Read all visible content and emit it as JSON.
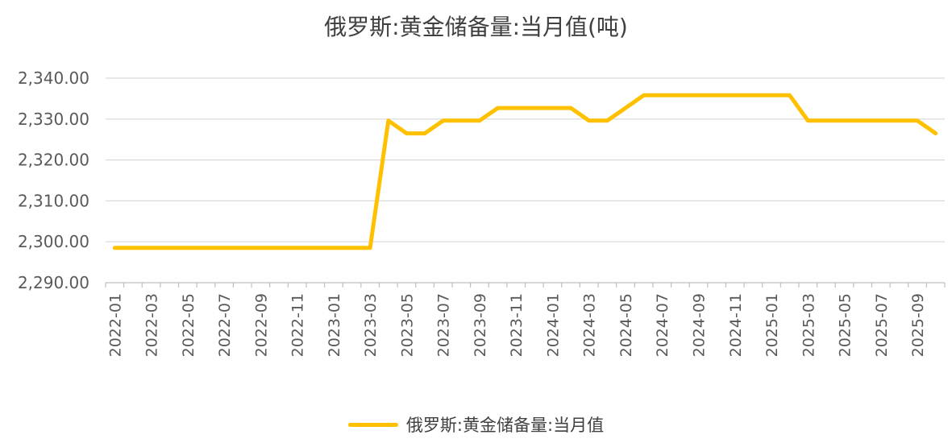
{
  "chart_data": {
    "type": "line",
    "title": "俄罗斯:黄金储备量:当月值(吨)",
    "xlabel": "",
    "ylabel": "",
    "ylim": [
      2290,
      2340
    ],
    "yticks": [
      "2,290.00",
      "2,300.00",
      "2,310.00",
      "2,320.00",
      "2,330.00",
      "2,340.00"
    ],
    "grid": true,
    "legend_position": "bottom",
    "x": [
      "2022-01",
      "2022-02",
      "2022-03",
      "2022-04",
      "2022-05",
      "2022-06",
      "2022-07",
      "2022-08",
      "2022-09",
      "2022-10",
      "2022-11",
      "2022-12",
      "2023-01",
      "2023-02",
      "2023-03",
      "2023-04",
      "2023-05",
      "2023-06",
      "2023-07",
      "2023-08",
      "2023-09",
      "2023-10",
      "2023-11",
      "2023-12",
      "2024-01",
      "2024-02",
      "2024-03",
      "2024-04",
      "2024-05",
      "2024-06",
      "2024-07",
      "2024-08",
      "2024-09",
      "2024-10",
      "2024-11",
      "2024-12",
      "2025-01",
      "2025-02",
      "2025-03",
      "2025-04",
      "2025-05",
      "2025-06",
      "2025-07",
      "2025-08",
      "2025-09",
      "2025-10"
    ],
    "xtick_labels": [
      "2022-01",
      "2022-03",
      "2022-05",
      "2022-07",
      "2022-09",
      "2022-11",
      "2023-01",
      "2023-03",
      "2023-05",
      "2023-07",
      "2023-09",
      "2023-11",
      "2024-01",
      "2024-03",
      "2024-05",
      "2024-07",
      "2024-09",
      "2024-11",
      "2025-01",
      "2025-03",
      "2025-05",
      "2025-07",
      "2025-09"
    ],
    "series": [
      {
        "name": "俄罗斯:黄金储备量:当月值",
        "color": "#FFC000",
        "values": [
          2298.5,
          2298.5,
          2298.5,
          2298.5,
          2298.5,
          2298.5,
          2298.5,
          2298.5,
          2298.5,
          2298.5,
          2298.5,
          2298.5,
          2298.5,
          2298.5,
          2298.5,
          2329.6,
          2326.5,
          2326.5,
          2329.6,
          2329.6,
          2329.6,
          2332.7,
          2332.7,
          2332.7,
          2332.7,
          2332.7,
          2329.6,
          2329.6,
          2332.7,
          2335.8,
          2335.8,
          2335.8,
          2335.8,
          2335.8,
          2335.8,
          2335.8,
          2335.8,
          2335.8,
          2329.6,
          2329.6,
          2329.6,
          2329.6,
          2329.6,
          2329.6,
          2329.6,
          2326.5
        ]
      }
    ]
  }
}
